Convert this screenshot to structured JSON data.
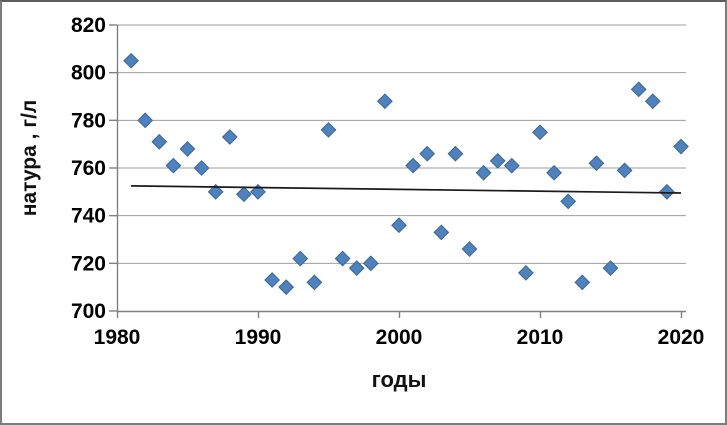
{
  "chart_data": {
    "type": "scatter",
    "title": "",
    "xlabel": "годы",
    "ylabel": "натура , г/л",
    "xlim": [
      1980,
      2020
    ],
    "ylim": [
      700,
      820
    ],
    "x_ticks": [
      1980,
      1990,
      2000,
      2010,
      2020
    ],
    "y_ticks": [
      700,
      720,
      740,
      760,
      780,
      800,
      820
    ],
    "grid": "horizontal",
    "legend": "none",
    "x": [
      1981,
      1982,
      1983,
      1984,
      1985,
      1986,
      1987,
      1988,
      1989,
      1990,
      1991,
      1992,
      1993,
      1994,
      1995,
      1996,
      1997,
      1998,
      1999,
      2000,
      2001,
      2002,
      2003,
      2004,
      2005,
      2006,
      2007,
      2008,
      2009,
      2010,
      2011,
      2012,
      2013,
      2014,
      2015,
      2016,
      2017,
      2018,
      2019,
      2020
    ],
    "y": [
      805,
      780,
      771,
      761,
      768,
      760,
      750,
      773,
      749,
      750,
      713,
      710,
      722,
      712,
      776,
      722,
      718,
      720,
      788,
      736,
      761,
      766,
      733,
      766,
      726,
      758,
      763,
      761,
      716,
      775,
      758,
      746,
      712,
      762,
      718,
      759,
      793,
      788,
      750,
      769
    ],
    "marker": {
      "shape": "diamond",
      "color": "#4F81BD",
      "border": "#3A6793",
      "size": 14
    },
    "trendline": {
      "x1": 1981,
      "y1": 752.5,
      "x2": 2020,
      "y2": 749.5,
      "color": "#1a1a1a"
    },
    "colors": {
      "grid": "#9e9e9e",
      "axis": "#7f7f7f",
      "text": "#000000",
      "background": "#ffffff",
      "frame_border": "#7d7d7d"
    }
  }
}
